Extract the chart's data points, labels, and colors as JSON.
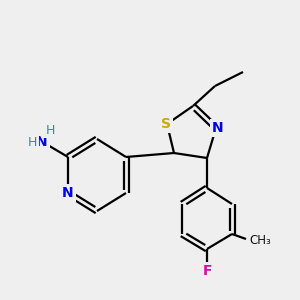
{
  "background_color": "#efefef",
  "bond_color": "#000000",
  "atom_colors": {
    "N": "#0000ee",
    "S": "#ccaa00",
    "F": "#ee00aa",
    "H": "#448888",
    "C": "#000000"
  },
  "lw": 1.6,
  "dbl_off": 2.5
}
